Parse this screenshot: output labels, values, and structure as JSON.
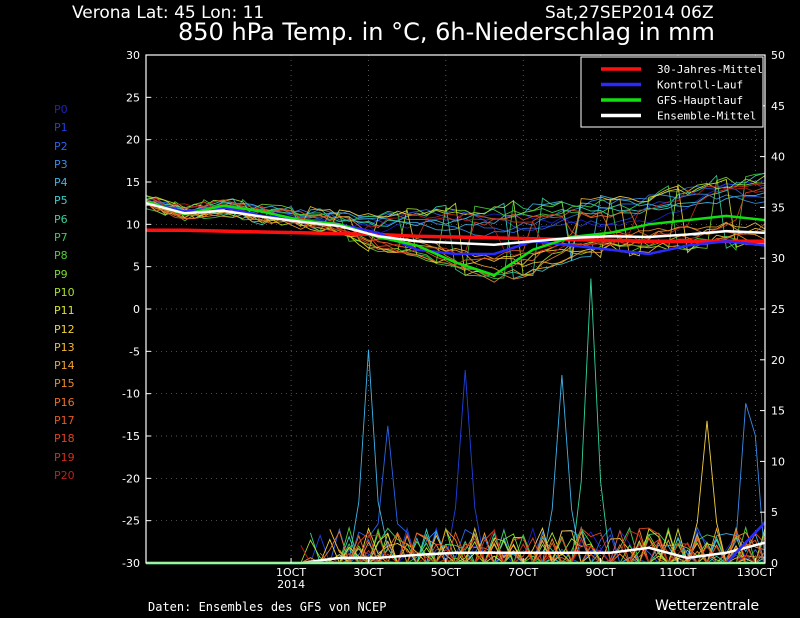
{
  "header": {
    "location": "Verona   Lat: 45 Lon: 11",
    "run": "Sat,27SEP2014 06Z",
    "title": "850 hPa Temp. in °C, 6h-Niederschlag in mm"
  },
  "footer": {
    "source": "Daten: Ensembles des GFS von NCEP",
    "brand": "Wetterzentrale"
  },
  "members": [
    {
      "label": "P0",
      "color": "#2020c8"
    },
    {
      "label": "P1",
      "color": "#2040dc"
    },
    {
      "label": "P2",
      "color": "#2a64e6"
    },
    {
      "label": "P3",
      "color": "#3a8cea"
    },
    {
      "label": "P4",
      "color": "#40b4e8"
    },
    {
      "label": "P5",
      "color": "#3ccfcf"
    },
    {
      "label": "P6",
      "color": "#34d49a"
    },
    {
      "label": "P7",
      "color": "#34d05a"
    },
    {
      "label": "P8",
      "color": "#4ad034"
    },
    {
      "label": "P9",
      "color": "#7ad830"
    },
    {
      "label": "P10",
      "color": "#a8e030"
    },
    {
      "label": "P11",
      "color": "#d8e030"
    },
    {
      "label": "P12",
      "color": "#f0d040"
    },
    {
      "label": "P13",
      "color": "#f4b838"
    },
    {
      "label": "P14",
      "color": "#f0a030"
    },
    {
      "label": "P15",
      "color": "#ec8a2c"
    },
    {
      "label": "P16",
      "color": "#e87028"
    },
    {
      "label": "P17",
      "color": "#e45a24"
    },
    {
      "label": "P18",
      "color": "#dc4420"
    },
    {
      "label": "P19",
      "color": "#d0301c"
    },
    {
      "label": "P20",
      "color": "#c02018"
    }
  ],
  "chart_data": {
    "type": "line",
    "left_axis": {
      "label": "850 hPa Temp. (°C)",
      "ylim": [
        -30,
        30
      ],
      "ticks": [
        -30,
        -25,
        -20,
        -15,
        -10,
        -5,
        0,
        5,
        10,
        15,
        20,
        25,
        30
      ]
    },
    "right_axis": {
      "label": "6h-Niederschlag (mm)",
      "ylim": [
        0,
        50
      ],
      "ticks": [
        0,
        5,
        10,
        15,
        20,
        25,
        30,
        35,
        40,
        45,
        50
      ]
    },
    "x_axis": {
      "range_days": [
        0,
        16
      ],
      "start": "27SEP2014 06Z",
      "ticks": [
        {
          "day": 3.75,
          "label": "1OCT",
          "sublabel": "2014"
        },
        {
          "day": 5.75,
          "label": "3OCT"
        },
        {
          "day": 7.75,
          "label": "5OCT"
        },
        {
          "day": 9.75,
          "label": "7OCT"
        },
        {
          "day": 11.75,
          "label": "9OCT"
        },
        {
          "day": 13.75,
          "label": "11OCT"
        },
        {
          "day": 15.75,
          "label": "13OCT"
        }
      ]
    },
    "grid": true,
    "legend_position": "top-right",
    "legend": [
      {
        "label": "30-Jahres-Mittel",
        "color": "#ff1010"
      },
      {
        "label": "Kontroll-Lauf",
        "color": "#2a2aff"
      },
      {
        "label": "GFS-Hauptlauf",
        "color": "#10e010"
      },
      {
        "label": "Ensemble-Mittel",
        "color": "#ffffff"
      }
    ],
    "temperature": {
      "days": [
        0,
        1,
        2,
        3,
        4,
        5,
        6,
        7,
        8,
        9,
        10,
        11,
        12,
        13,
        14,
        15,
        16
      ],
      "climatology": [
        9.3,
        9.3,
        9.2,
        9.1,
        9.0,
        8.9,
        8.8,
        8.6,
        8.5,
        8.4,
        8.3,
        8.2,
        8.1,
        8.0,
        8.0,
        8.0,
        8.0
      ],
      "control": [
        12.5,
        11.5,
        12.0,
        11.0,
        10.5,
        10.0,
        9.0,
        7.0,
        6.5,
        6.5,
        8.0,
        7.5,
        7.0,
        6.5,
        7.5,
        8.0,
        7.5
      ],
      "gfs_main": [
        12.7,
        11.2,
        12.2,
        11.5,
        10.5,
        10.0,
        8.5,
        7.5,
        5.5,
        4.0,
        7.0,
        8.5,
        9.0,
        10.0,
        10.5,
        11.0,
        10.5
      ],
      "ensemble_mean": [
        12.5,
        11.3,
        11.6,
        10.9,
        10.3,
        9.8,
        8.6,
        8.0,
        7.8,
        7.6,
        8.0,
        8.4,
        8.6,
        8.5,
        8.8,
        9.2,
        9.0
      ],
      "member_spread_min": [
        12.0,
        10.5,
        11.0,
        10.0,
        9.5,
        8.5,
        6.0,
        5.0,
        3.0,
        1.5,
        2.5,
        5.0,
        5.5,
        5.5,
        5.5,
        6.0,
        5.5
      ],
      "member_spread_max": [
        13.0,
        12.0,
        12.5,
        12.0,
        11.5,
        11.0,
        10.5,
        11.0,
        11.0,
        11.0,
        11.5,
        12.0,
        12.0,
        12.5,
        13.5,
        14.5,
        15.0
      ]
    },
    "precipitation_mm": {
      "days": [
        0,
        1,
        2,
        3,
        4,
        5,
        6,
        7,
        8,
        9,
        10,
        11,
        12,
        13,
        14,
        15,
        16
      ],
      "control": [
        0,
        0,
        0,
        0,
        0,
        0,
        0,
        0,
        0,
        0,
        0,
        0,
        0,
        0,
        0,
        0,
        4
      ],
      "gfs_main": [
        0,
        0,
        0,
        0,
        0,
        0,
        0,
        0,
        0,
        0,
        0,
        0,
        0,
        0,
        0,
        0,
        0
      ],
      "ensemble_mean": [
        0,
        0,
        0,
        0,
        0,
        0.5,
        0.5,
        0.8,
        1,
        1,
        1,
        1,
        1,
        1.5,
        0.5,
        1,
        2
      ],
      "peaks": [
        {
          "day": 5.75,
          "value": 21,
          "member": "P4"
        },
        {
          "day": 8.25,
          "value": 19,
          "member": "P1"
        },
        {
          "day": 11.5,
          "value": 28,
          "member": "P6"
        },
        {
          "day": 10.75,
          "value": 18.5,
          "member": "P4"
        },
        {
          "day": 15.6,
          "value": 22,
          "member": "P3"
        },
        {
          "day": 14.5,
          "value": 14,
          "member": "P12"
        },
        {
          "day": 6.25,
          "value": 13.5,
          "member": "P2"
        }
      ]
    }
  }
}
